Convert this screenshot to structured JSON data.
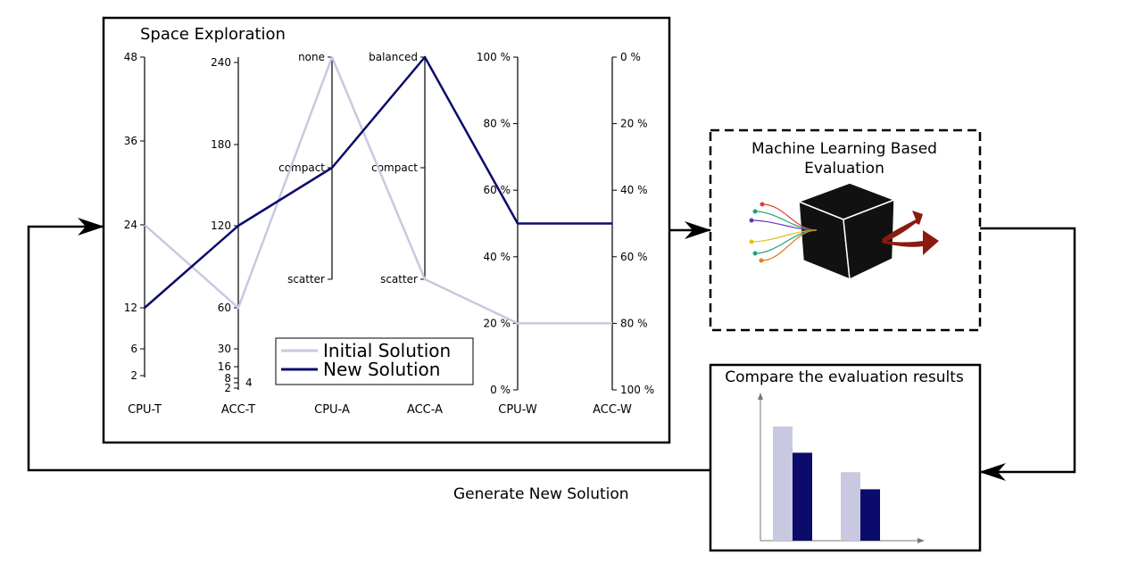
{
  "exploration": {
    "title": "Space Exploration",
    "axes": [
      {
        "label": "CPU-T",
        "ticks": [
          "48",
          "36",
          "24",
          "12",
          "6",
          "2"
        ]
      },
      {
        "label": "ACC-T",
        "ticks": [
          "240",
          "180",
          "120",
          "60",
          "30",
          "16",
          "8",
          "4",
          "2"
        ]
      },
      {
        "label": "CPU-A",
        "ticks": [
          "none",
          "compact",
          "scatter"
        ]
      },
      {
        "label": "ACC-A",
        "ticks": [
          "balanced",
          "compact",
          "scatter"
        ]
      },
      {
        "label": "CPU-W",
        "ticks": [
          "100 %",
          "80 %",
          "60 %",
          "40 %",
          "20 %",
          "0 %"
        ]
      },
      {
        "label": "ACC-W",
        "ticks": [
          "0 %",
          "20 %",
          "40 %",
          "60 %",
          "80 %",
          "100 %"
        ]
      }
    ],
    "series": [
      {
        "name": "Initial Solution",
        "color": "#c8c8e0",
        "values": [
          "24",
          "60",
          "none",
          "scatter",
          "20 %",
          "80 %"
        ]
      },
      {
        "name": "New Solution",
        "color": "#0b0b6b",
        "values": [
          "12",
          "120",
          "compact",
          "balanced",
          "50 %",
          "50 %"
        ]
      }
    ]
  },
  "evaluation": {
    "title_line1": "Machine Learning Based",
    "title_line2": "Evaluation",
    "icon": "black-box-cube-icon",
    "arrow_color": "#8b1a10",
    "input_dot_colors": [
      "#e04030",
      "#20a080",
      "#7030c0",
      "#e0c020",
      "#20a080",
      "#e08020"
    ]
  },
  "compare": {
    "title": "Compare the evaluation results",
    "series": [
      {
        "color": "#c8c8e0",
        "values": [
          1.0,
          0.6
        ]
      },
      {
        "color": "#0b0b6b",
        "values": [
          0.77,
          0.45
        ]
      }
    ]
  },
  "loop": {
    "label": "Generate New Solution"
  }
}
